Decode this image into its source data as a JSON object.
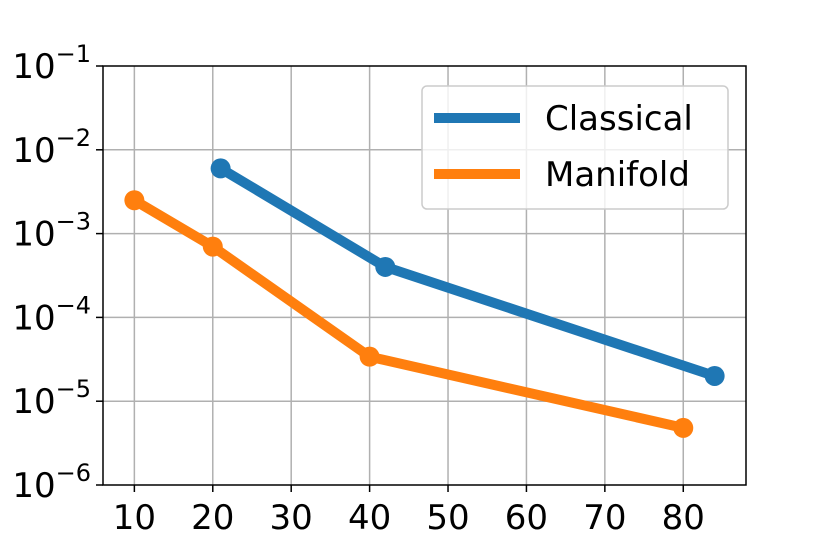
{
  "chart_data": {
    "type": "line",
    "x_ticks": [
      10,
      20,
      30,
      40,
      50,
      60,
      70,
      80
    ],
    "y_scale": "log",
    "y_ticks": [
      {
        "value": 0.1,
        "base": "10",
        "exp": "−1"
      },
      {
        "value": 0.01,
        "base": "10",
        "exp": "−2"
      },
      {
        "value": 0.001,
        "base": "10",
        "exp": "−3"
      },
      {
        "value": 0.0001,
        "base": "10",
        "exp": "−4"
      },
      {
        "value": 1e-05,
        "base": "10",
        "exp": "−5"
      },
      {
        "value": 1e-06,
        "base": "10",
        "exp": "−6"
      }
    ],
    "xlim": [
      6,
      88
    ],
    "ylim": [
      1e-06,
      0.1
    ],
    "grid": true,
    "legend_position": "top-right",
    "series": [
      {
        "name": "Classical",
        "color": "#1f77b4",
        "x": [
          21,
          42,
          84
        ],
        "y": [
          0.006,
          0.0004,
          2e-05
        ]
      },
      {
        "name": "Manifold",
        "color": "#ff7f0e",
        "x": [
          10,
          20,
          40,
          80
        ],
        "y": [
          0.0025,
          0.0007,
          3.4e-05,
          4.8e-06
        ]
      }
    ]
  }
}
